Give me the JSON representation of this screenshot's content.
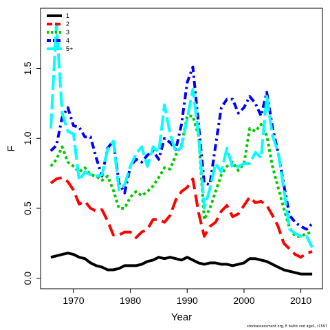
{
  "chart_data": {
    "type": "line",
    "xlabel": "Year",
    "ylabel": "F",
    "xlim": [
      1966,
      2012
    ],
    "ylim": [
      0,
      1.9
    ],
    "x_ticks": [
      1970,
      1980,
      1990,
      2000,
      2010
    ],
    "y_ticks": [
      0.0,
      0.5,
      1.0,
      1.5
    ],
    "y_tick_labels": [
      "0.0",
      "0.5",
      "1.0",
      "1.5"
    ],
    "legend_position": "top-left",
    "grid": false,
    "x": [
      1966,
      1967,
      1968,
      1969,
      1970,
      1971,
      1972,
      1973,
      1974,
      1975,
      1976,
      1977,
      1978,
      1979,
      1980,
      1981,
      1982,
      1983,
      1984,
      1985,
      1986,
      1987,
      1988,
      1989,
      1990,
      1991,
      1992,
      1993,
      1994,
      1995,
      1996,
      1997,
      1998,
      1999,
      2000,
      2001,
      2002,
      2003,
      2004,
      2005,
      2006,
      2007,
      2008,
      2009,
      2010,
      2011,
      2012
    ],
    "series": [
      {
        "name": "1",
        "color": "#000000",
        "dash": "",
        "values": [
          0.15,
          0.16,
          0.17,
          0.18,
          0.17,
          0.15,
          0.14,
          0.11,
          0.09,
          0.08,
          0.06,
          0.06,
          0.07,
          0.09,
          0.09,
          0.09,
          0.1,
          0.12,
          0.13,
          0.15,
          0.14,
          0.15,
          0.14,
          0.13,
          0.15,
          0.13,
          0.11,
          0.1,
          0.11,
          0.11,
          0.1,
          0.1,
          0.09,
          0.1,
          0.11,
          0.14,
          0.14,
          0.13,
          0.12,
          0.1,
          0.08,
          0.06,
          0.05,
          0.04,
          0.03,
          0.03,
          0.03
        ]
      },
      {
        "name": "2",
        "color": "#ff0000",
        "dash": "18,8",
        "values": [
          0.68,
          0.71,
          0.72,
          0.69,
          0.63,
          0.53,
          0.55,
          0.5,
          0.48,
          0.49,
          0.41,
          0.31,
          0.31,
          0.33,
          0.33,
          0.29,
          0.33,
          0.35,
          0.42,
          0.42,
          0.4,
          0.45,
          0.56,
          0.62,
          0.65,
          0.71,
          0.47,
          0.3,
          0.37,
          0.4,
          0.48,
          0.52,
          0.44,
          0.46,
          0.52,
          0.58,
          0.54,
          0.55,
          0.52,
          0.45,
          0.37,
          0.25,
          0.21,
          0.17,
          0.15,
          0.18,
          0.19
        ]
      },
      {
        "name": "3",
        "color": "#00cc00",
        "dash": "4,4",
        "values": [
          0.8,
          0.85,
          0.94,
          0.83,
          0.8,
          0.76,
          0.79,
          0.74,
          0.73,
          0.7,
          0.73,
          0.63,
          0.5,
          0.5,
          0.58,
          0.62,
          0.59,
          0.62,
          0.66,
          0.72,
          0.79,
          0.78,
          0.88,
          0.95,
          1.16,
          1.16,
          1.02,
          0.42,
          0.5,
          0.62,
          0.74,
          0.8,
          0.83,
          0.77,
          0.82,
          1.07,
          1.05,
          1.1,
          1.02,
          0.8,
          0.65,
          0.5,
          0.36,
          0.3,
          0.3,
          0.32,
          0.33
        ]
      },
      {
        "name": "4",
        "color": "#0000ff",
        "dash": "10,5,3,5",
        "values": [
          0.91,
          0.95,
          1.15,
          1.22,
          1.09,
          1.08,
          1.01,
          1.01,
          0.86,
          0.73,
          0.93,
          0.98,
          0.68,
          0.61,
          0.8,
          0.85,
          0.83,
          0.88,
          0.91,
          0.85,
          1.0,
          0.97,
          0.92,
          1.1,
          1.4,
          1.51,
          1.1,
          0.68,
          0.67,
          0.95,
          1.22,
          1.28,
          1.28,
          1.18,
          1.22,
          1.3,
          1.25,
          1.16,
          1.33,
          1.08,
          0.9,
          0.67,
          0.45,
          0.4,
          0.37,
          0.35,
          0.39
        ]
      },
      {
        "name": "5+",
        "color": "#00ffff",
        "dash": "22,6",
        "values": [
          1.07,
          1.82,
          1.18,
          1.05,
          1.03,
          0.7,
          0.76,
          0.74,
          0.73,
          0.74,
          0.92,
          0.98,
          0.63,
          0.67,
          0.8,
          0.89,
          0.94,
          0.8,
          0.94,
          0.9,
          1.24,
          1.03,
          0.9,
          0.94,
          1.14,
          1.35,
          1.03,
          0.5,
          0.64,
          0.82,
          0.76,
          0.93,
          0.79,
          0.8,
          0.82,
          0.82,
          0.9,
          0.86,
          1.3,
          1.02,
          0.9,
          0.64,
          0.35,
          0.32,
          0.3,
          0.3,
          0.22
        ]
      }
    ]
  },
  "credit": "stockassessment.org, E baltic cod age1, r1597"
}
